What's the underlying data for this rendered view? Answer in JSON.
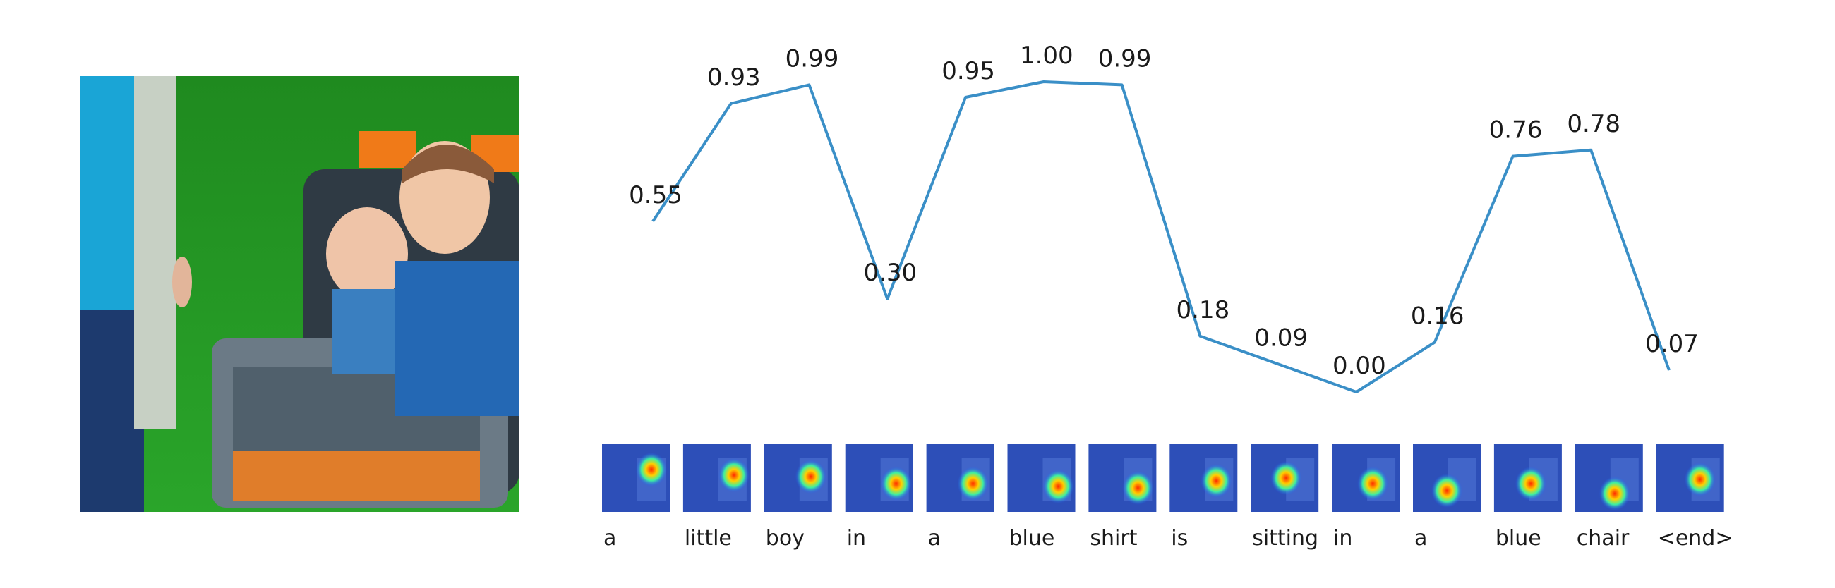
{
  "chart_data": {
    "type": "line",
    "title": "",
    "xlabel": "",
    "ylabel": "",
    "ylim": [
      0,
      1
    ],
    "grid": false,
    "categories": [
      "a",
      "little",
      "boy",
      "in",
      "a",
      "blue",
      "shirt",
      "is",
      "sitting",
      "in",
      "a",
      "blue",
      "chair",
      "<end>"
    ],
    "series": [
      {
        "color": "#3a8fc7",
        "values": [
          0.55,
          0.93,
          0.99,
          0.3,
          0.95,
          1.0,
          0.99,
          0.18,
          0.09,
          0.0,
          0.16,
          0.76,
          0.78,
          0.07
        ],
        "labels": [
          "0.55",
          "0.93",
          "0.99",
          "0.30",
          "0.95",
          "1.00",
          "0.99",
          "0.18",
          "0.09",
          "0.00",
          "0.16",
          "0.76",
          "0.78",
          "0.07"
        ]
      }
    ]
  }
}
